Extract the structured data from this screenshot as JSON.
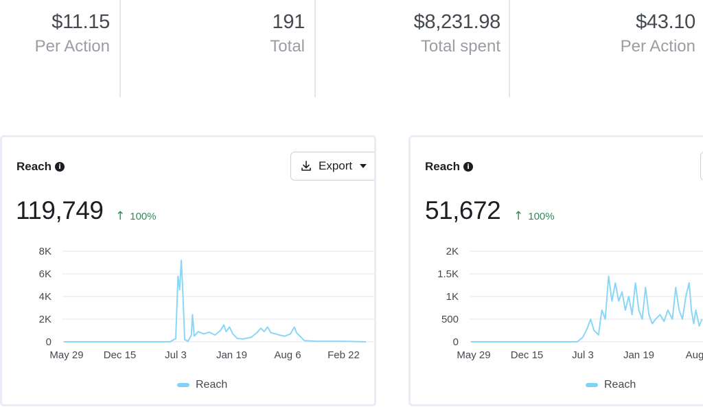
{
  "metrics": [
    {
      "value": "$11.15",
      "label": "Per Action"
    },
    {
      "value": "191",
      "label": "Total"
    },
    {
      "value": "$8,231.98",
      "label": "Total spent"
    },
    {
      "value": "$43.10",
      "label": "Per Action"
    }
  ],
  "cards": [
    {
      "title": "Reach",
      "total": "119,749",
      "delta": "100%",
      "export_label": "Export",
      "legend": "Reach",
      "colors": {
        "line": "#8ad6f6",
        "grid": "#e4e6eb",
        "delta": "#2e8b57"
      }
    },
    {
      "title": "Reach",
      "total": "51,672",
      "delta": "100%",
      "legend": "Reach",
      "colors": {
        "line": "#8ad6f6",
        "grid": "#e4e6eb",
        "delta": "#2e8b57"
      }
    }
  ],
  "chart_data": [
    {
      "type": "line",
      "title": "Reach",
      "xlabel": "",
      "ylabel": "",
      "x_ticks": [
        "May 29",
        "Dec 15",
        "Jul 3",
        "Jan 19",
        "Aug 6",
        "Feb 22"
      ],
      "y_ticks": [
        "0",
        "2K",
        "4K",
        "6K",
        "8K"
      ],
      "ylim": [
        0,
        8000
      ],
      "grid": true,
      "legend_position": "bottom",
      "series": [
        {
          "name": "Reach",
          "color": "#8ad6f6",
          "points": [
            [
              0,
              0
            ],
            [
              0.5,
              0
            ],
            [
              1,
              0
            ],
            [
              1.5,
              0
            ],
            [
              1.9,
              0
            ],
            [
              2.0,
              300
            ],
            [
              2.04,
              5800
            ],
            [
              2.07,
              4600
            ],
            [
              2.1,
              7200
            ],
            [
              2.13,
              4000
            ],
            [
              2.16,
              200
            ],
            [
              2.22,
              50
            ],
            [
              2.28,
              600
            ],
            [
              2.3,
              2400
            ],
            [
              2.33,
              500
            ],
            [
              2.4,
              900
            ],
            [
              2.5,
              700
            ],
            [
              2.6,
              850
            ],
            [
              2.7,
              600
            ],
            [
              2.8,
              1000
            ],
            [
              2.86,
              1500
            ],
            [
              2.9,
              900
            ],
            [
              2.96,
              1300
            ],
            [
              3.02,
              700
            ],
            [
              3.1,
              300
            ],
            [
              3.2,
              250
            ],
            [
              3.35,
              400
            ],
            [
              3.45,
              800
            ],
            [
              3.52,
              1200
            ],
            [
              3.58,
              900
            ],
            [
              3.64,
              1300
            ],
            [
              3.7,
              800
            ],
            [
              3.78,
              700
            ],
            [
              3.85,
              600
            ],
            [
              3.95,
              500
            ],
            [
              4.05,
              700
            ],
            [
              4.12,
              1300
            ],
            [
              4.16,
              800
            ],
            [
              4.22,
              500
            ],
            [
              4.3,
              100
            ],
            [
              4.5,
              50
            ],
            [
              5.0,
              50
            ],
            [
              5.4,
              0
            ]
          ]
        }
      ]
    },
    {
      "type": "line",
      "title": "Reach",
      "xlabel": "",
      "ylabel": "",
      "x_ticks": [
        "May 29",
        "Dec 15",
        "Jul 3",
        "Jan 19",
        "Aug"
      ],
      "y_ticks": [
        "0",
        "500",
        "1K",
        "1.5K",
        "2K"
      ],
      "ylim": [
        0,
        2000
      ],
      "grid": true,
      "legend_position": "bottom",
      "series": [
        {
          "name": "Reach",
          "color": "#8ad6f6",
          "points": [
            [
              0,
              0
            ],
            [
              0.5,
              0
            ],
            [
              1,
              0
            ],
            [
              1.5,
              0
            ],
            [
              1.9,
              0
            ],
            [
              2.0,
              100
            ],
            [
              2.08,
              300
            ],
            [
              2.14,
              500
            ],
            [
              2.2,
              250
            ],
            [
              2.28,
              150
            ],
            [
              2.34,
              700
            ],
            [
              2.4,
              500
            ],
            [
              2.46,
              1450
            ],
            [
              2.52,
              900
            ],
            [
              2.58,
              1300
            ],
            [
              2.64,
              900
            ],
            [
              2.7,
              1100
            ],
            [
              2.76,
              700
            ],
            [
              2.82,
              1000
            ],
            [
              2.88,
              600
            ],
            [
              2.94,
              1300
            ],
            [
              3.0,
              700
            ],
            [
              3.06,
              500
            ],
            [
              3.12,
              1200
            ],
            [
              3.18,
              600
            ],
            [
              3.24,
              400
            ],
            [
              3.3,
              500
            ],
            [
              3.38,
              600
            ],
            [
              3.45,
              450
            ],
            [
              3.52,
              700
            ],
            [
              3.6,
              500
            ],
            [
              3.66,
              1200
            ],
            [
              3.72,
              700
            ],
            [
              3.78,
              500
            ],
            [
              3.84,
              1000
            ],
            [
              3.9,
              1300
            ],
            [
              3.94,
              700
            ],
            [
              3.98,
              400
            ],
            [
              4.02,
              700
            ],
            [
              4.08,
              350
            ],
            [
              4.13,
              500
            ]
          ]
        }
      ]
    }
  ]
}
